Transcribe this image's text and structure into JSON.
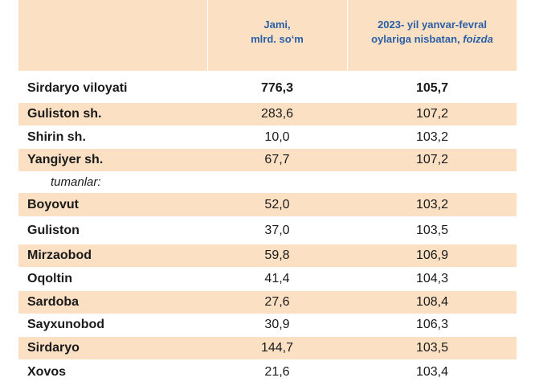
{
  "header": {
    "col2_line1": "Jami,",
    "col2_line2": "mlrd. so‘m",
    "col3_line1": "2023- yil yanvar-fevral",
    "col3_line2_prefix": "oylariga nisbatan, ",
    "col3_line2_italic": "foizda"
  },
  "rows": [
    {
      "name": "Sirdaryo viloyati",
      "value": "776,3",
      "index": "105,7"
    },
    {
      "name": "Guliston  sh.",
      "value": "283,6",
      "index": "107,2"
    },
    {
      "name": "Shirin sh.",
      "value": "10,0",
      "index": "103,2"
    },
    {
      "name": "Yangiyer sh.",
      "value": "67,7",
      "index": "107,2"
    },
    {
      "name": "tumanlar:",
      "value": "",
      "index": ""
    },
    {
      "name": "Boyovut",
      "value": "52,0",
      "index": "103,2"
    },
    {
      "name": "Guliston",
      "value": "37,0",
      "index": "103,5"
    },
    {
      "name": "Mirzaobod",
      "value": "59,8",
      "index": "106,9"
    },
    {
      "name": "Oqoltin",
      "value": "41,4",
      "index": "104,3"
    },
    {
      "name": "Sardoba",
      "value": "27,6",
      "index": "108,4"
    },
    {
      "name": "Sayxunobod",
      "value": "30,9",
      "index": "106,3"
    },
    {
      "name": "Sirdaryo",
      "value": "144,7",
      "index": "103,5"
    },
    {
      "name": "Xovos",
      "value": "21,6",
      "index": "103,4"
    }
  ]
}
